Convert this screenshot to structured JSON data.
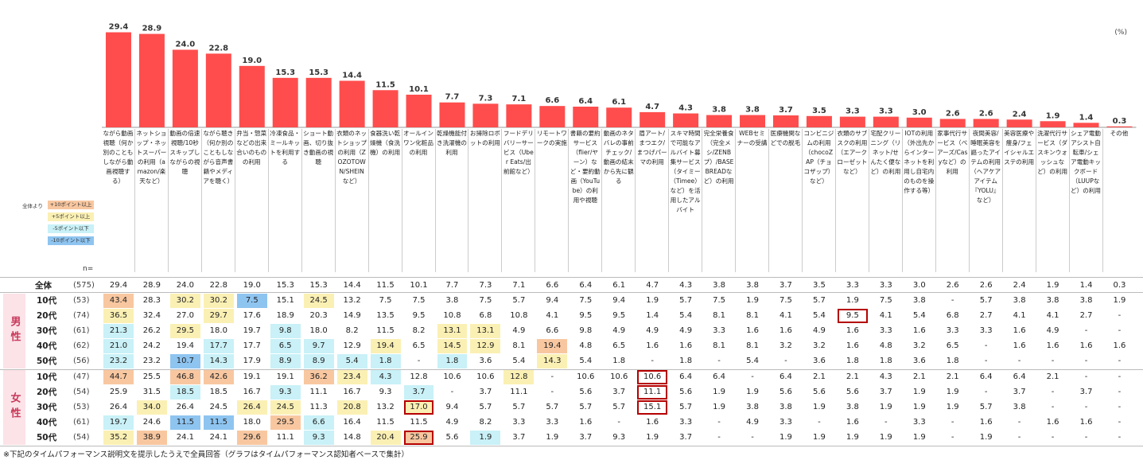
{
  "unit": "(%)",
  "n_label": "n=",
  "legend": {
    "title": "全体より",
    "items": [
      {
        "label": "+10ポイント以上",
        "color": "#f8c7a0"
      },
      {
        "label": "+5ポイント以上",
        "color": "#fbf0b4"
      },
      {
        "label": "-5ポイント以下",
        "color": "#c9f1f7"
      },
      {
        "label": "-10ポイント以下",
        "color": "#8ec4f0"
      }
    ]
  },
  "gender_labels": {
    "male": "男性",
    "female": "女性"
  },
  "footnote": "※下記のタイムパフォーマンス説明文を提示したうえで全員回答（グラフはタイムパフォーマンス認知者ベースで集計）",
  "colors": {
    "bar": "#ff4d4d",
    "male_band": "#fbe3e8",
    "highlight_border": "#b50000"
  },
  "chart_data": {
    "type": "bar",
    "categories": [
      "ながら動画視聴（何か別のこともしながら動画視聴する）",
      "ネットショップ・ネットスーパーの利用（amazon/楽天など）",
      "動画の倍速視聴/10秒スキップしながらの視聴",
      "ながら聴き（何か別のこともしながら音声書籍やメディアを聴く）",
      "弁当・惣菜などの出来合いのものの利用",
      "冷凍食品・ミールキットを利用する",
      "ショート動画、切り抜き動画の視聴",
      "衣類のネットショップの利用（ZOZOTOWN/SHEINなど）",
      "食器洗い乾燥機（食洗機）の利用",
      "オールインワン化粧品の利用",
      "乾燥機能付き洗濯機の利用",
      "お掃除ロボットの利用",
      "フードデリバリーサービス（Uber Eats/出前館など）",
      "リモートワークの実施",
      "書籍の要約サービス（flier/ヤーン）など・要約動画（YouTube）の利用や視聴",
      "動画のネタバレの事前チェック/動画の結末から先に観る",
      "眉アート/まつエク/まつげパーマの利用",
      "スキマ時間で可能なアルバイト募集サービス（タイミー（Timee）など）を活用したアルバイト",
      "完全栄養食（完全メシ/ZENBプ）/BASE BREADなど）の利用",
      "WEBセミナーの受講",
      "医療機関などでの脱毛",
      "コンビニジムの利用（chocoZAP（チョコザップ）など）",
      "衣類のサブスクの利用（エアークローゼットなど）",
      "宅配クリーニング（リネット/せんたく便など）の利用",
      "IOTの利用（外出先からインターネットを利用し自宅内のものを操作する等）",
      "家事代行サービス（ベアーズ/Casyなど）の利用",
      "夜間美容/睡眠美容を謳ったアイテムの利用（ヘアケアアイテム『YOLU』など）",
      "美容医療や痩身/フェイシャルエステの利用",
      "洗濯代行サービス（ダスキンウォッシュなど）の利用",
      "シェア電動アシスト自転車/シェア電動キックボード（LUUPなど）の利用",
      "その他"
    ],
    "values": [
      29.4,
      28.9,
      24.0,
      22.8,
      19.0,
      15.3,
      15.3,
      14.4,
      11.5,
      10.1,
      7.7,
      7.3,
      7.1,
      6.6,
      6.4,
      6.1,
      4.7,
      4.3,
      3.8,
      3.8,
      3.7,
      3.5,
      3.3,
      3.3,
      3.0,
      2.6,
      2.6,
      2.4,
      1.9,
      1.4,
      0.3
    ],
    "value_labels": [
      "29.4",
      "28.9",
      "24.0",
      "22.8",
      "19.0",
      "15.3",
      "15.3",
      "14.4",
      "11.5",
      "10.1",
      "7.7",
      "7.3",
      "7.1",
      "6.6",
      "6.4",
      "6.1",
      "4.7",
      "4.3",
      "3.8",
      "3.8",
      "3.7",
      "3.5",
      "3.3",
      "3.3",
      "3.0",
      "2.6",
      "2.6",
      "2.4",
      "1.9",
      "1.4",
      "0.3"
    ],
    "ylim": [
      0,
      32
    ],
    "table": {
      "rows": [
        {
          "label": "全体",
          "n": "(575)",
          "values": [
            "29.4",
            "28.9",
            "24.0",
            "22.8",
            "19.0",
            "15.3",
            "15.3",
            "14.4",
            "11.5",
            "10.1",
            "7.7",
            "7.3",
            "7.1",
            "6.6",
            "6.4",
            "6.1",
            "4.7",
            "4.3",
            "3.8",
            "3.8",
            "3.7",
            "3.5",
            "3.3",
            "3.3",
            "3.0",
            "2.6",
            "2.6",
            "2.4",
            "1.9",
            "1.4",
            "0.3"
          ],
          "shade": []
        },
        {
          "label": "10代",
          "n": "(53)",
          "group": "male",
          "values": [
            "43.4",
            "28.3",
            "30.2",
            "30.2",
            "7.5",
            "15.1",
            "24.5",
            "13.2",
            "7.5",
            "7.5",
            "3.8",
            "7.5",
            "5.7",
            "9.4",
            "7.5",
            "9.4",
            "1.9",
            "5.7",
            "7.5",
            "1.9",
            "7.5",
            "5.7",
            "1.9",
            "7.5",
            "3.8",
            "-",
            "5.7",
            "3.8",
            "3.8",
            "3.8",
            "1.9"
          ],
          "shade": {
            "0": "p10",
            "2": "p5",
            "3": "p5",
            "4": "m10",
            "6": "p5"
          }
        },
        {
          "label": "20代",
          "n": "(74)",
          "group": "male",
          "values": [
            "36.5",
            "32.4",
            "27.0",
            "29.7",
            "17.6",
            "18.9",
            "20.3",
            "14.9",
            "13.5",
            "9.5",
            "10.8",
            "6.8",
            "10.8",
            "4.1",
            "9.5",
            "9.5",
            "1.4",
            "5.4",
            "8.1",
            "8.1",
            "4.1",
            "5.4",
            "9.5",
            "4.1",
            "5.4",
            "6.8",
            "2.7",
            "4.1",
            "4.1",
            "2.7",
            "-"
          ],
          "shade": {
            "0": "p5",
            "3": "p5"
          },
          "highlight": [
            22
          ]
        },
        {
          "label": "30代",
          "n": "(61)",
          "group": "male",
          "values": [
            "21.3",
            "26.2",
            "29.5",
            "18.0",
            "19.7",
            "9.8",
            "18.0",
            "8.2",
            "11.5",
            "8.2",
            "13.1",
            "13.1",
            "4.9",
            "6.6",
            "9.8",
            "4.9",
            "4.9",
            "4.9",
            "3.3",
            "1.6",
            "1.6",
            "4.9",
            "1.6",
            "3.3",
            "1.6",
            "3.3",
            "3.3",
            "1.6",
            "4.9",
            "-",
            "-"
          ],
          "shade": {
            "0": "m5",
            "2": "p5",
            "5": "m5",
            "10": "p5",
            "11": "p5"
          }
        },
        {
          "label": "40代",
          "n": "(62)",
          "group": "male",
          "values": [
            "21.0",
            "24.2",
            "19.4",
            "17.7",
            "17.7",
            "6.5",
            "9.7",
            "12.9",
            "19.4",
            "6.5",
            "14.5",
            "12.9",
            "8.1",
            "19.4",
            "4.8",
            "6.5",
            "1.6",
            "1.6",
            "8.1",
            "8.1",
            "3.2",
            "3.2",
            "1.6",
            "4.8",
            "3.2",
            "6.5",
            "-",
            "1.6",
            "1.6",
            "1.6",
            "1.6"
          ],
          "shade": {
            "0": "m5",
            "3": "m5",
            "5": "m5",
            "6": "m5",
            "8": "p5",
            "10": "p5",
            "11": "p5",
            "13": "p10"
          }
        },
        {
          "label": "50代",
          "n": "(56)",
          "group": "male",
          "values": [
            "23.2",
            "23.2",
            "10.7",
            "14.3",
            "17.9",
            "8.9",
            "8.9",
            "5.4",
            "1.8",
            "-",
            "1.8",
            "3.6",
            "5.4",
            "14.3",
            "5.4",
            "1.8",
            "-",
            "1.8",
            "-",
            "5.4",
            "-",
            "3.6",
            "1.8",
            "1.8",
            "3.6",
            "1.8",
            "-",
            "-",
            "-",
            "-",
            "-"
          ],
          "shade": {
            "0": "m5",
            "2": "m10",
            "3": "m5",
            "5": "m5",
            "6": "m5",
            "7": "m5",
            "8": "m5",
            "10": "m5",
            "13": "p5"
          }
        },
        {
          "label": "10代",
          "n": "(47)",
          "group": "female",
          "values": [
            "44.7",
            "25.5",
            "46.8",
            "42.6",
            "19.1",
            "19.1",
            "36.2",
            "23.4",
            "4.3",
            "12.8",
            "10.6",
            "10.6",
            "12.8",
            "-",
            "10.6",
            "10.6",
            "10.6",
            "6.4",
            "6.4",
            "-",
            "6.4",
            "2.1",
            "2.1",
            "4.3",
            "2.1",
            "2.1",
            "6.4",
            "6.4",
            "2.1",
            "-",
            "-"
          ],
          "shade": {
            "0": "p10",
            "2": "p10",
            "3": "p10",
            "6": "p10",
            "7": "p5",
            "8": "m5",
            "12": "p5"
          },
          "highlight": [
            16
          ]
        },
        {
          "label": "20代",
          "n": "(54)",
          "group": "female",
          "values": [
            "25.9",
            "31.5",
            "18.5",
            "18.5",
            "16.7",
            "9.3",
            "11.1",
            "16.7",
            "9.3",
            "3.7",
            "-",
            "3.7",
            "11.1",
            "-",
            "5.6",
            "3.7",
            "11.1",
            "5.6",
            "1.9",
            "1.9",
            "5.6",
            "5.6",
            "5.6",
            "3.7",
            "1.9",
            "1.9",
            "-",
            "3.7",
            "-",
            "3.7",
            "-"
          ],
          "shade": {
            "2": "m5",
            "5": "m5",
            "9": "m5"
          },
          "highlight": [
            16
          ]
        },
        {
          "label": "30代",
          "n": "(53)",
          "group": "female",
          "values": [
            "26.4",
            "34.0",
            "26.4",
            "24.5",
            "26.4",
            "24.5",
            "11.3",
            "20.8",
            "13.2",
            "17.0",
            "9.4",
            "5.7",
            "5.7",
            "5.7",
            "5.7",
            "5.7",
            "15.1",
            "5.7",
            "1.9",
            "3.8",
            "3.8",
            "1.9",
            "3.8",
            "1.9",
            "1.9",
            "1.9",
            "5.7",
            "3.8",
            "-",
            "-",
            "-"
          ],
          "shade": {
            "1": "p5",
            "4": "p5",
            "5": "p5",
            "7": "p5",
            "9": "p5"
          },
          "highlight": [
            9,
            16
          ]
        },
        {
          "label": "40代",
          "n": "(61)",
          "group": "female",
          "values": [
            "19.7",
            "24.6",
            "11.5",
            "11.5",
            "18.0",
            "29.5",
            "6.6",
            "16.4",
            "11.5",
            "11.5",
            "4.9",
            "8.2",
            "3.3",
            "3.3",
            "1.6",
            "-",
            "1.6",
            "3.3",
            "-",
            "4.9",
            "3.3",
            "-",
            "1.6",
            "-",
            "3.3",
            "-",
            "1.6",
            "-",
            "1.6",
            "1.6",
            "-"
          ],
          "shade": {
            "0": "m5",
            "2": "m10",
            "3": "m10",
            "5": "p10",
            "6": "m5"
          }
        },
        {
          "label": "50代",
          "n": "(54)",
          "group": "female",
          "values": [
            "35.2",
            "38.9",
            "24.1",
            "24.1",
            "29.6",
            "11.1",
            "9.3",
            "14.8",
            "20.4",
            "25.9",
            "5.6",
            "1.9",
            "3.7",
            "1.9",
            "3.7",
            "9.3",
            "1.9",
            "3.7",
            "-",
            "-",
            "1.9",
            "1.9",
            "1.9",
            "1.9",
            "1.9",
            "-",
            "1.9",
            "-",
            "-",
            "-",
            "-"
          ],
          "shade": {
            "0": "p5",
            "1": "p10",
            "4": "p10",
            "6": "m5",
            "8": "p5",
            "9": "p10",
            "11": "m5"
          },
          "highlight": [
            9
          ]
        }
      ]
    }
  }
}
